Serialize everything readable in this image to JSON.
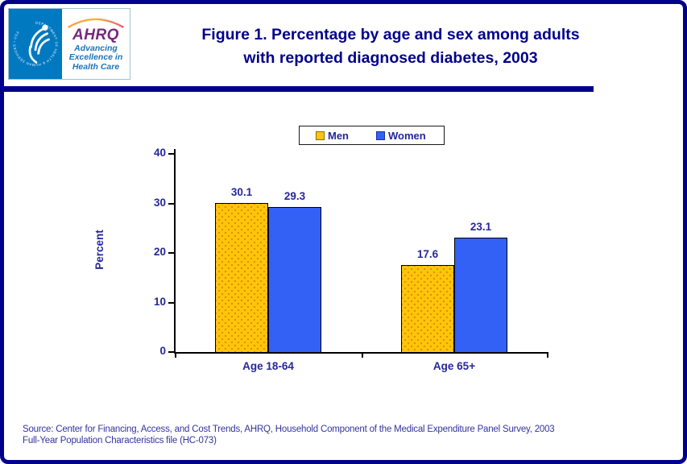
{
  "header": {
    "title_line1": "Figure 1. Percentage by age and sex among adults",
    "title_line2": "with reported diagnosed diabetes, 2003"
  },
  "logo": {
    "ring_text": "DEPARTMENT OF HEALTH & HUMAN SERVICES • USA",
    "acronym": "AHRQ",
    "tagline": [
      "Advancing",
      "Excellence in",
      "Health Care"
    ]
  },
  "chart_data": {
    "type": "bar",
    "title": "Figure 1. Percentage by age and sex among adults with reported diagnosed diabetes, 2003",
    "categories": [
      "Age 18-64",
      "Age 65+"
    ],
    "series": [
      {
        "name": "Men",
        "values": [
          30.1,
          17.6
        ],
        "color": "#FFC50A",
        "dot_color": "#E09000",
        "swatch_border": "#8A6D00"
      },
      {
        "name": "Women",
        "values": [
          29.3,
          23.1
        ],
        "color": "#3361F6",
        "swatch_border": "#16349C"
      }
    ],
    "ylabel": "Percent",
    "ylim": [
      0,
      40
    ],
    "yticks": [
      0,
      10,
      20,
      30,
      40
    ],
    "legend_position": "top-center",
    "grid": false,
    "value_labels": true
  },
  "footer": {
    "source_line1": "Source: Center for Financing, Access, and Cost Trends, AHRQ, Household Component of the Medical Expenditure Panel Survey, 2003",
    "source_line2": "Full-Year Population Characteristics file (HC-073)"
  },
  "colors": {
    "page_border": "#00008B",
    "divider": "#00008B",
    "title_text": "#00008B",
    "chart_text": "#26269B",
    "source_text": "#3333A0",
    "hhs_blue": "#0079C1",
    "ahrq_purple": "#76287E",
    "tagline_blue": "#1B75BB"
  }
}
